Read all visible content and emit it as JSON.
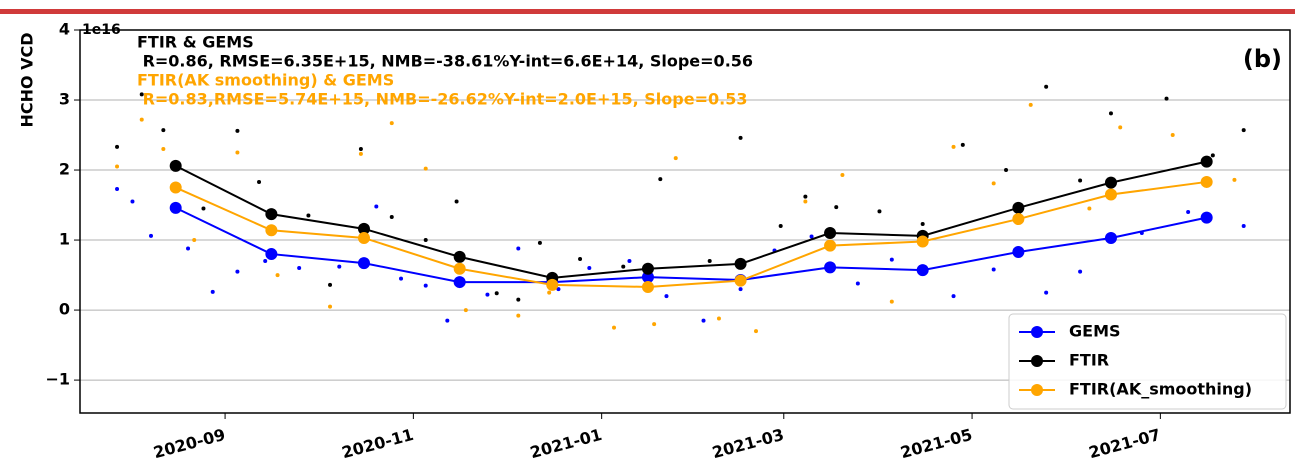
{
  "chart_data": {
    "type": "line",
    "y_label": "HCHO VCD",
    "offset_text": "1e16",
    "panel_label": "(b)",
    "annotations": [
      {
        "text": "FTIR & GEMS",
        "color": "#000000"
      },
      {
        "text": " R=0.86, RMSE=6.35E+15, NMB=-38.61%Y-int=6.6E+14, Slope=0.56",
        "color": "#000000"
      },
      {
        "text": "FTIR(AK smoothing) & GEMS",
        "color": "#ffa500"
      },
      {
        "text": " R=0.83,RMSE=5.74E+15, NMB=-26.62%Y-int=2.0E+15, Slope=0.53",
        "color": "#ffa500"
      }
    ],
    "xlim": [
      "2020-07-16",
      "2021-08-12"
    ],
    "xticks": [
      {
        "value": "2020-09-01",
        "label": "2020-09"
      },
      {
        "value": "2020-11-01",
        "label": "2020-11"
      },
      {
        "value": "2021-01-01",
        "label": "2021-01"
      },
      {
        "value": "2021-03-01",
        "label": "2021-03"
      },
      {
        "value": "2021-05-01",
        "label": "2021-05"
      },
      {
        "value": "2021-07-01",
        "label": "2021-07"
      }
    ],
    "ylim": [
      -1.47,
      4
    ],
    "yticks": [
      {
        "value": -1,
        "label": "−1"
      },
      0,
      1,
      2,
      3,
      4
    ],
    "grid": true,
    "legend": "lower right",
    "x": [
      "2020-08-16",
      "2020-09-16",
      "2020-10-16",
      "2020-11-16",
      "2020-12-16",
      "2021-01-16",
      "2021-02-15",
      "2021-03-16",
      "2021-04-15",
      "2021-05-16",
      "2021-06-15",
      "2021-07-16"
    ],
    "series": [
      {
        "name": "GEMS",
        "color": "#0000ff",
        "values": [
          1.46,
          0.8,
          0.67,
          0.4,
          0.4,
          0.47,
          0.43,
          0.61,
          0.57,
          0.83,
          1.03,
          1.32
        ]
      },
      {
        "name": "FTIR",
        "color": "#000000",
        "values": [
          2.06,
          1.37,
          1.16,
          0.76,
          0.46,
          0.59,
          0.66,
          1.1,
          1.06,
          1.46,
          1.82,
          2.12
        ]
      },
      {
        "name": "FTIR(AK_smoothing)",
        "color": "#ffa500",
        "values": [
          1.75,
          1.14,
          1.03,
          0.59,
          0.36,
          0.33,
          0.42,
          0.92,
          0.98,
          1.3,
          1.65,
          1.83
        ]
      }
    ],
    "scatter_series": [
      {
        "color": "#0000ff",
        "x": [
          "2020-07-28",
          "2020-08-02",
          "2020-08-08",
          "2020-08-20",
          "2020-08-28",
          "2020-09-05",
          "2020-09-14",
          "2020-09-25",
          "2020-10-08",
          "2020-10-20",
          "2020-10-28",
          "2020-11-05",
          "2020-11-12",
          "2020-11-25",
          "2020-12-05",
          "2020-12-18",
          "2020-12-28",
          "2021-01-10",
          "2021-01-22",
          "2021-02-03",
          "2021-02-15",
          "2021-02-26",
          "2021-03-10",
          "2021-03-25",
          "2021-04-05",
          "2021-04-25",
          "2021-05-08",
          "2021-05-25",
          "2021-06-05",
          "2021-06-25",
          "2021-07-10",
          "2021-07-28"
        ],
        "values": [
          1.73,
          1.55,
          1.06,
          0.88,
          0.26,
          0.55,
          0.7,
          0.6,
          0.62,
          1.48,
          0.45,
          0.35,
          -0.15,
          0.22,
          0.88,
          0.3,
          0.6,
          0.7,
          0.2,
          -0.15,
          0.3,
          0.85,
          1.05,
          0.38,
          0.72,
          0.2,
          0.58,
          0.25,
          0.55,
          1.1,
          1.4,
          1.2
        ]
      },
      {
        "color": "#000000",
        "x": [
          "2020-07-28",
          "2020-08-05",
          "2020-08-12",
          "2020-08-25",
          "2020-09-05",
          "2020-09-12",
          "2020-09-28",
          "2020-10-05",
          "2020-10-15",
          "2020-10-25",
          "2020-11-05",
          "2020-11-15",
          "2020-11-28",
          "2020-12-05",
          "2020-12-12",
          "2020-12-25",
          "2021-01-08",
          "2021-01-20",
          "2021-02-05",
          "2021-02-15",
          "2021-02-28",
          "2021-03-08",
          "2021-03-18",
          "2021-04-01",
          "2021-04-15",
          "2021-04-28",
          "2021-05-12",
          "2021-05-25",
          "2021-06-05",
          "2021-06-15",
          "2021-07-03",
          "2021-07-18",
          "2021-07-28"
        ],
        "values": [
          2.33,
          3.08,
          2.57,
          1.45,
          2.56,
          1.83,
          1.35,
          0.36,
          2.3,
          1.33,
          1.0,
          1.55,
          0.24,
          0.15,
          0.96,
          0.73,
          0.62,
          1.87,
          0.7,
          2.46,
          1.2,
          1.62,
          1.47,
          1.41,
          1.23,
          2.36,
          2.0,
          3.19,
          1.85,
          2.81,
          3.02,
          2.21,
          2.57
        ]
      },
      {
        "color": "#ffa500",
        "x": [
          "2020-07-28",
          "2020-08-05",
          "2020-08-12",
          "2020-08-22",
          "2020-09-05",
          "2020-09-18",
          "2020-10-05",
          "2020-10-15",
          "2020-10-25",
          "2020-11-05",
          "2020-11-18",
          "2020-12-05",
          "2020-12-15",
          "2021-01-05",
          "2021-01-18",
          "2021-01-25",
          "2021-02-08",
          "2021-02-20",
          "2021-03-08",
          "2021-03-20",
          "2021-04-05",
          "2021-04-25",
          "2021-05-08",
          "2021-05-20",
          "2021-06-08",
          "2021-06-18",
          "2021-07-05",
          "2021-07-25"
        ],
        "values": [
          2.05,
          2.72,
          2.3,
          1.0,
          2.25,
          0.5,
          0.05,
          2.23,
          2.67,
          2.02,
          0.0,
          -0.08,
          0.25,
          -0.25,
          -0.2,
          2.17,
          -0.12,
          -0.3,
          1.55,
          1.93,
          0.12,
          2.33,
          1.81,
          2.93,
          1.45,
          2.61,
          2.5,
          1.86
        ]
      }
    ]
  }
}
